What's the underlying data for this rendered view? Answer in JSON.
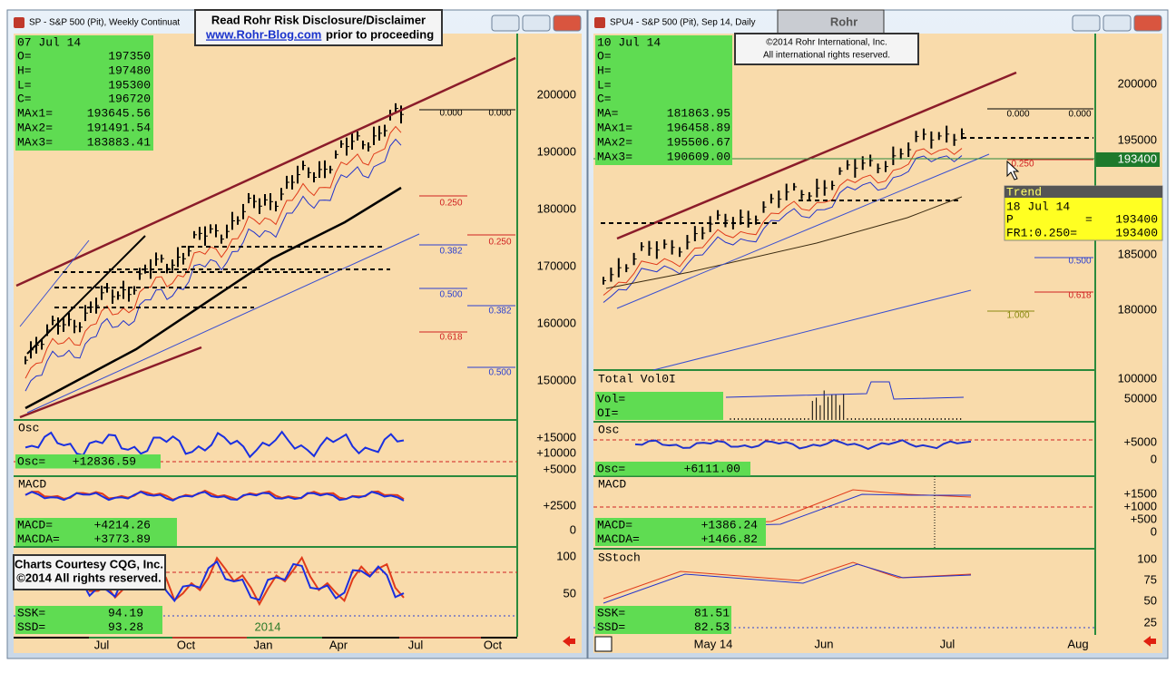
{
  "windows": [
    {
      "title": "SP - S&P 500 (Pit), Weekly Continuat",
      "info": {
        "date": "07 Jul 14",
        "rows": [
          [
            "O=",
            "197350"
          ],
          [
            "H=",
            "197480"
          ],
          [
            "L=",
            "195300"
          ],
          [
            "C=",
            "196720"
          ],
          [
            "MAx1=",
            "193645.56"
          ],
          [
            "MAx2=",
            "191491.54"
          ],
          [
            "MAx3=",
            "183883.41"
          ]
        ]
      },
      "price_axis": [
        "200000",
        "190000",
        "180000",
        "170000",
        "160000",
        "150000"
      ],
      "fib_labels": [
        "0.000",
        "0.000",
        "0.250",
        "0.250",
        "0.382",
        "0.382",
        "0.500",
        "0.500",
        "0.618"
      ],
      "panels": [
        {
          "name": "Osc",
          "readout": [
            [
              "Osc=",
              "+12836.59"
            ]
          ],
          "axis": [
            "+15000",
            "+10000",
            "+5000"
          ]
        },
        {
          "name": "MACD",
          "readout": [
            [
              "MACD=",
              "+4214.26"
            ],
            [
              "MACDA=",
              "+3773.89"
            ]
          ],
          "axis": [
            "+2500",
            "0"
          ]
        },
        {
          "readout": [
            [
              "SSK=",
              "94.19"
            ],
            [
              "SSD=",
              "93.28"
            ]
          ],
          "axis": [
            "100",
            "50"
          ]
        }
      ],
      "year_label": "2014",
      "time_axis": [
        "Jul",
        "Oct",
        "Jan",
        "Apr",
        "Jul",
        "Oct"
      ]
    },
    {
      "title": "SPU4 - S&P 500 (Pit), Sep 14, Daily",
      "info": {
        "date": "10 Jul 14",
        "rows": [
          [
            "O="
          ],
          [
            "H="
          ],
          [
            "L="
          ],
          [
            "C="
          ],
          [
            "MA=",
            "181863.95"
          ],
          [
            "MAx1=",
            "196458.89"
          ],
          [
            "MAx2=",
            "195506.67"
          ],
          [
            "MAx3=",
            "190609.00"
          ]
        ]
      },
      "price_axis": [
        "200000",
        "195000",
        "185000",
        "180000"
      ],
      "last_price": "193400",
      "fib_labels": [
        "0.000",
        "0.000",
        "0.250",
        "0.500",
        "0.618",
        "1.000"
      ],
      "panels": [
        {
          "name": "Total Vol0I",
          "readout": [
            [
              "Vol="
            ],
            [
              "OI="
            ]
          ],
          "axis": [
            "100000",
            "50000"
          ]
        },
        {
          "name": "Osc",
          "readout": [
            [
              "Osc=",
              "+6111.00"
            ]
          ],
          "axis": [
            "+5000",
            "0"
          ]
        },
        {
          "name": "MACD",
          "readout": [
            [
              "MACD=",
              "+1386.24"
            ],
            [
              "MACDA=",
              "+1466.82"
            ]
          ],
          "axis": [
            "+1500",
            "+1000",
            "+500",
            "0"
          ]
        },
        {
          "name": "SStoch",
          "readout": [
            [
              "SSK=",
              "81.51"
            ],
            [
              "SSD=",
              "82.53"
            ]
          ],
          "axis": [
            "100",
            "75",
            "50",
            "25"
          ]
        }
      ],
      "trend": {
        "title": "Trend",
        "date": "18 Jul 14",
        "rows": [
          [
            "P",
            "=",
            "193400"
          ],
          [
            "FR1:0.250=",
            "193400"
          ]
        ]
      },
      "time_axis": [
        "May 14",
        "Jun",
        "Jul",
        "Aug"
      ]
    }
  ],
  "disclaimer": {
    "line1": "Read Rohr Risk Disclosure/Disclaimer",
    "link": "www.Rohr-Blog.com",
    "line2": "prior to proceeding"
  },
  "logo": "Rohr",
  "copyright": {
    "line1": "©2014  Rohr International, Inc.",
    "line2": "All international rights reserved."
  },
  "courtesy": {
    "line1": "Charts Courtesy CQG, Inc.",
    "line2": "©2014 All rights reserved."
  }
}
